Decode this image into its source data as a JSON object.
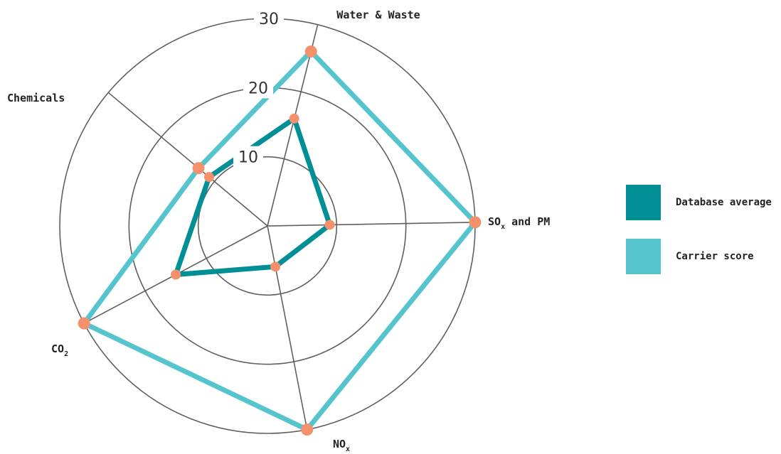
{
  "chart_data": {
    "type": "radar",
    "axes": [
      {
        "key": "water",
        "label": "Water & Waste",
        "sub": "",
        "suffix": ""
      },
      {
        "key": "sox",
        "label": "SO",
        "sub": "x",
        "suffix": " and PM"
      },
      {
        "key": "nox",
        "label": "NO",
        "sub": "x",
        "suffix": ""
      },
      {
        "key": "co2",
        "label": "CO",
        "sub": "2",
        "suffix": ""
      },
      {
        "key": "chem",
        "label": "Chemicals",
        "sub": "",
        "suffix": ""
      }
    ],
    "rticks": [
      "10",
      "20",
      "30"
    ],
    "rmax": 30,
    "series": [
      {
        "name": "Carrier score",
        "color": "#56c4cd",
        "values": [
          26,
          30,
          30,
          30,
          13
        ]
      },
      {
        "name": "Database average",
        "color": "#008f94",
        "values": [
          16,
          9,
          6,
          15,
          11
        ]
      }
    ],
    "marker_color": "#f4906c",
    "grid": true,
    "legend_position": "right"
  }
}
